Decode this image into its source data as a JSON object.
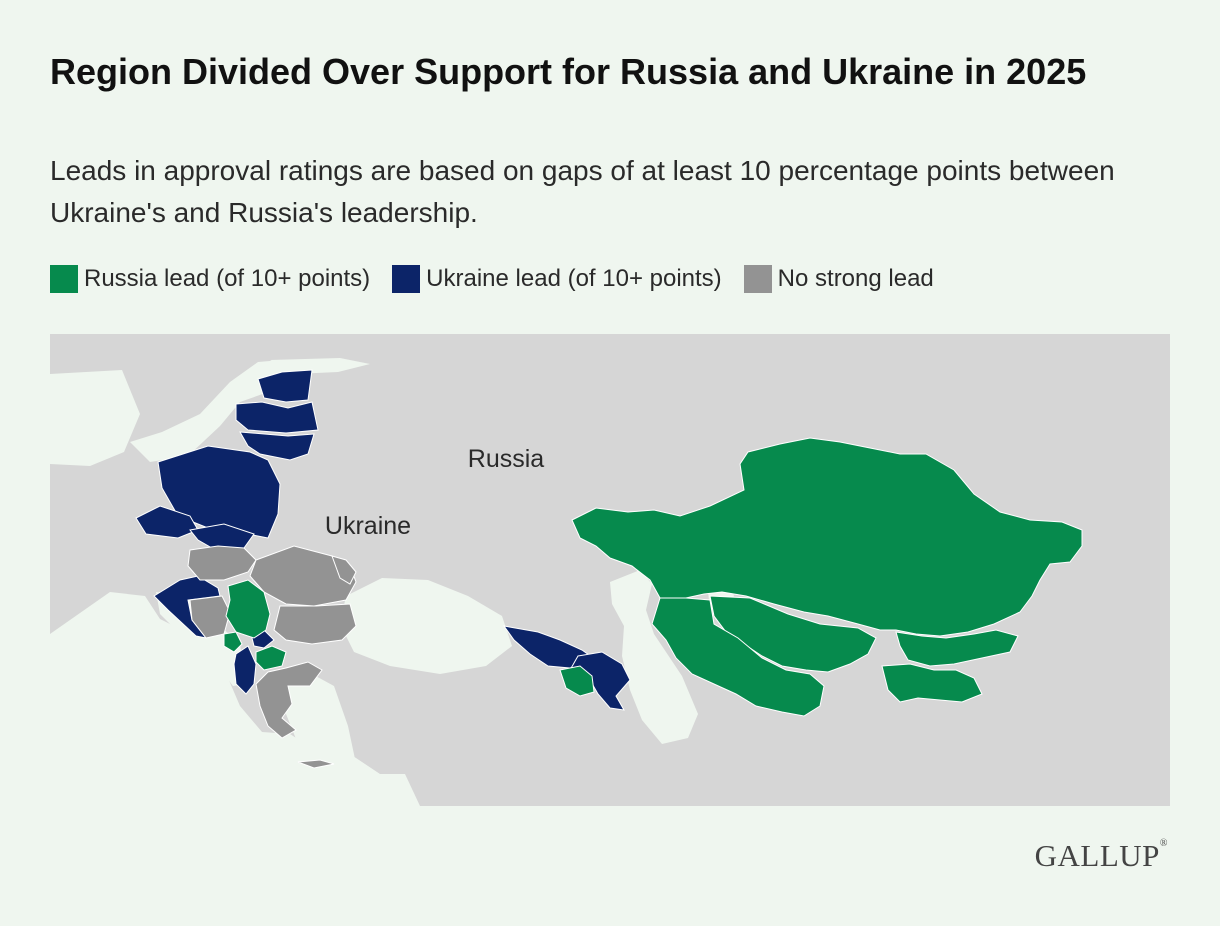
{
  "title": "Region Divided Over Support for Russia and Ukraine in 2025",
  "subtitle": "Leads in approval ratings are based on gaps of at least 10 percentage points between Ukraine's and Russia's leadership.",
  "legend": [
    {
      "label": "Russia lead (of 10+ points)",
      "color": "#068a4d"
    },
    {
      "label": "Ukraine lead (of 10+ points)",
      "color": "#0c2468"
    },
    {
      "label": "No strong lead",
      "color": "#939393"
    }
  ],
  "map": {
    "labels": {
      "russia": "Russia",
      "ukraine": "Ukraine"
    },
    "colors": {
      "russia_lead": "#068a4d",
      "ukraine_lead": "#0c2468",
      "no_lead": "#939393",
      "base_land": "#d6d6d6",
      "water": "#eff6ef",
      "border": "#ffffff"
    },
    "regions": {
      "russia_lead": [
        "Kazakhstan",
        "Uzbekistan",
        "Kyrgyzstan",
        "Tajikistan",
        "Turkmenistan",
        "Armenia",
        "Serbia",
        "North Macedonia",
        "Montenegro"
      ],
      "ukraine_lead": [
        "Estonia",
        "Latvia",
        "Lithuania",
        "Poland",
        "Czechia",
        "Slovakia",
        "Croatia",
        "Georgia",
        "Azerbaijan",
        "Albania",
        "Kosovo"
      ],
      "no_lead": [
        "Hungary",
        "Romania",
        "Moldova",
        "Bulgaria",
        "Greece",
        "Bosnia and Herzegovina"
      ]
    }
  },
  "logo": {
    "text": "GALLUP",
    "mark": "®"
  }
}
